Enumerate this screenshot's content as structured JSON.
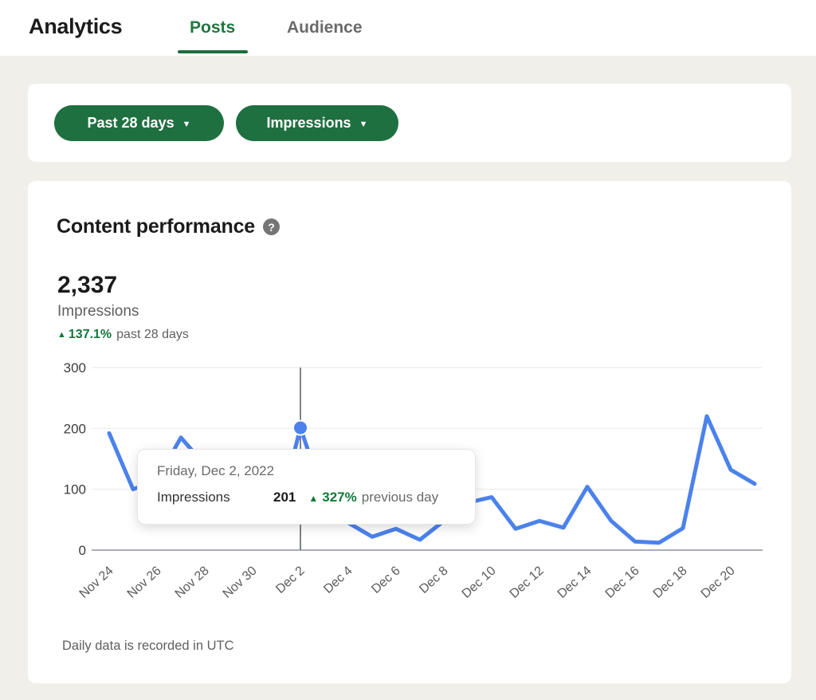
{
  "header": {
    "title": "Analytics",
    "tabs": [
      {
        "label": "Posts",
        "active": true
      },
      {
        "label": "Audience",
        "active": false
      }
    ]
  },
  "filters": {
    "period_label": "Past 28 days",
    "metric_label": "Impressions",
    "caret": "▼"
  },
  "card": {
    "title": "Content performance",
    "help_glyph": "?",
    "metric_value": "2,337",
    "metric_label": "Impressions",
    "delta_arrow": "▲",
    "delta_value": "137.1%",
    "delta_suffix": "past 28 days",
    "footnote": "Daily data is recorded in UTC"
  },
  "tooltip": {
    "date": "Friday, Dec 2, 2022",
    "metric": "Impressions",
    "value": "201",
    "delta_arrow": "▲",
    "delta_value": "327%",
    "delta_suffix": "previous day"
  },
  "chart_data": {
    "type": "line",
    "title": "Content performance",
    "ylabel": "Impressions",
    "ylim": [
      0,
      300
    ],
    "yticks": [
      0,
      100,
      200,
      300
    ],
    "grid": true,
    "categories": [
      "Nov 24",
      "Nov 25",
      "Nov 26",
      "Nov 27",
      "Nov 28",
      "Nov 29",
      "Nov 30",
      "Dec 1",
      "Dec 2",
      "Dec 3",
      "Dec 4",
      "Dec 5",
      "Dec 6",
      "Dec 7",
      "Dec 8",
      "Dec 9",
      "Dec 10",
      "Dec 11",
      "Dec 12",
      "Dec 13",
      "Dec 14",
      "Dec 15",
      "Dec 16",
      "Dec 17",
      "Dec 18",
      "Dec 19",
      "Dec 20",
      "Dec 21"
    ],
    "values": [
      192,
      100,
      115,
      185,
      140,
      85,
      60,
      47,
      201,
      85,
      45,
      22,
      35,
      17,
      48,
      78,
      87,
      35,
      48,
      37,
      104,
      48,
      14,
      12,
      36,
      220,
      132,
      109
    ],
    "x_tick_labels": [
      "Nov 24",
      "Nov 26",
      "Nov 28",
      "Nov 30",
      "Dec 2",
      "Dec 4",
      "Dec 6",
      "Dec 8",
      "Dec 10",
      "Dec 12",
      "Dec 14",
      "Dec 16",
      "Dec 18",
      "Dec 20"
    ],
    "highlight": {
      "category": "Dec 2",
      "index": 8,
      "value": 201
    },
    "total_label": "2,337",
    "line_color": "#4b82ec",
    "grid_color": "#ececec",
    "axis_color": "#8f949b",
    "crosshair_color": "#5f6368"
  },
  "colors": {
    "pill_green": "#1f7040",
    "tab_green": "#21763f",
    "delta_green": "#14773c",
    "page_background": "#f1efe9"
  }
}
